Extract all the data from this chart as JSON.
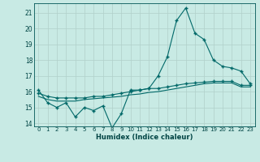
{
  "xlabel": "Humidex (Indice chaleur)",
  "bg_color": "#c8eae4",
  "grid_color": "#b0d0ca",
  "line_color": "#006868",
  "xlim": [
    -0.5,
    23.5
  ],
  "ylim": [
    13.8,
    21.6
  ],
  "x_ticks": [
    0,
    1,
    2,
    3,
    4,
    5,
    6,
    7,
    8,
    9,
    10,
    11,
    12,
    13,
    14,
    15,
    16,
    17,
    18,
    19,
    20,
    21,
    22,
    23
  ],
  "y_ticks": [
    14,
    15,
    16,
    17,
    18,
    19,
    20,
    21
  ],
  "jagged_x": [
    0,
    1,
    2,
    3,
    4,
    5,
    6,
    7,
    8,
    9,
    10,
    11,
    12,
    13,
    14,
    15,
    16,
    17,
    18,
    19,
    20,
    21,
    22,
    23
  ],
  "jagged_y": [
    16.1,
    15.3,
    15.0,
    15.3,
    14.4,
    15.0,
    14.8,
    15.1,
    13.7,
    14.6,
    16.1,
    16.1,
    16.2,
    17.0,
    18.2,
    20.5,
    21.3,
    19.7,
    19.3,
    18.0,
    17.6,
    17.5,
    17.3,
    16.5
  ],
  "smooth1_x": [
    0,
    1,
    2,
    3,
    4,
    5,
    6,
    7,
    8,
    9,
    10,
    11,
    12,
    13,
    14,
    15,
    16,
    17,
    18,
    19,
    20,
    21,
    22,
    23
  ],
  "smooth1_y": [
    15.9,
    15.7,
    15.6,
    15.6,
    15.6,
    15.6,
    15.7,
    15.7,
    15.8,
    15.9,
    16.0,
    16.1,
    16.2,
    16.2,
    16.3,
    16.4,
    16.5,
    16.55,
    16.6,
    16.65,
    16.65,
    16.65,
    16.4,
    16.4
  ],
  "smooth2_x": [
    0,
    1,
    2,
    3,
    4,
    5,
    6,
    7,
    8,
    9,
    10,
    11,
    12,
    13,
    14,
    15,
    16,
    17,
    18,
    19,
    20,
    21,
    22,
    23
  ],
  "smooth2_y": [
    15.7,
    15.5,
    15.4,
    15.4,
    15.4,
    15.5,
    15.55,
    15.6,
    15.65,
    15.7,
    15.8,
    15.85,
    15.95,
    16.0,
    16.1,
    16.2,
    16.3,
    16.4,
    16.5,
    16.55,
    16.55,
    16.55,
    16.3,
    16.3
  ],
  "markersize": 2.5,
  "linewidth": 0.8,
  "label_fontsize": 5.5,
  "tick_fontsize": 5.0,
  "xlabel_fontsize": 6.0
}
